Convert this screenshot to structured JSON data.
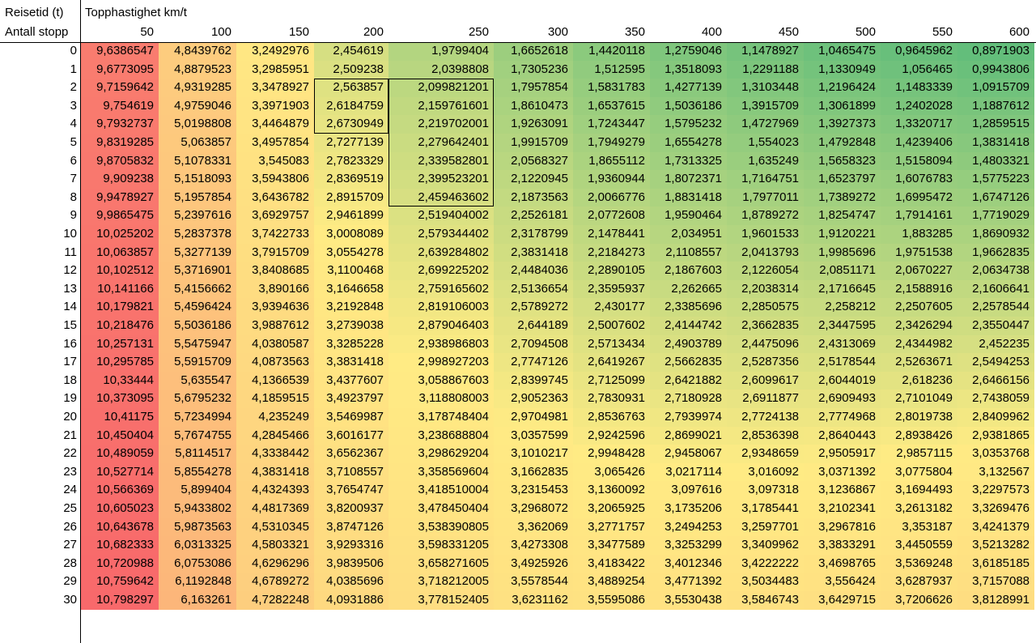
{
  "chart_data": {
    "type": "table",
    "corner_labels": {
      "top": "Reisetid (t)",
      "bottom": "Antall stopp"
    },
    "column_group_label": "Topphastighet km/t",
    "columns": [
      "50",
      "100",
      "150",
      "200",
      "250",
      "300",
      "350",
      "400",
      "450",
      "500",
      "550",
      "600"
    ],
    "rows": [
      {
        "label": "0",
        "values": [
          "9,6386547",
          "4,8439762",
          "3,2492976",
          "2,454619",
          "1,9799404",
          "1,6652618",
          "1,4420118",
          "1,2759046",
          "1,1478927",
          "1,0465475",
          "0,9645962",
          "0,8971903"
        ]
      },
      {
        "label": "1",
        "values": [
          "9,6773095",
          "4,8879523",
          "3,2985951",
          "2,509238",
          "2,0398808",
          "1,7305236",
          "1,512595",
          "1,3518093",
          "1,2291188",
          "1,1330949",
          "1,056465",
          "0,9943806"
        ]
      },
      {
        "label": "2",
        "values": [
          "9,7159642",
          "4,9319285",
          "3,3478927",
          "2,563857",
          "2,099821201",
          "1,7957854",
          "1,5831783",
          "1,4277139",
          "1,3103448",
          "1,2196424",
          "1,1483339",
          "1,0915709"
        ]
      },
      {
        "label": "3",
        "values": [
          "9,754619",
          "4,9759046",
          "3,3971903",
          "2,6184759",
          "2,159761601",
          "1,8610473",
          "1,6537615",
          "1,5036186",
          "1,3915709",
          "1,3061899",
          "1,2402028",
          "1,1887612"
        ]
      },
      {
        "label": "4",
        "values": [
          "9,7932737",
          "5,0198808",
          "3,4464879",
          "2,6730949",
          "2,219702001",
          "1,9263091",
          "1,7243447",
          "1,5795232",
          "1,4727969",
          "1,3927373",
          "1,3320717",
          "1,2859515"
        ]
      },
      {
        "label": "5",
        "values": [
          "9,8319285",
          "5,063857",
          "3,4957854",
          "2,7277139",
          "2,279642401",
          "1,9915709",
          "1,7949279",
          "1,6554278",
          "1,554023",
          "1,4792848",
          "1,4239406",
          "1,3831418"
        ]
      },
      {
        "label": "6",
        "values": [
          "9,8705832",
          "5,1078331",
          "3,545083",
          "2,7823329",
          "2,339582801",
          "2,0568327",
          "1,8655112",
          "1,7313325",
          "1,635249",
          "1,5658323",
          "1,5158094",
          "1,4803321"
        ]
      },
      {
        "label": "7",
        "values": [
          "9,909238",
          "5,1518093",
          "3,5943806",
          "2,8369519",
          "2,399523201",
          "2,1220945",
          "1,9360944",
          "1,8072371",
          "1,7164751",
          "1,6523797",
          "1,6076783",
          "1,5775223"
        ]
      },
      {
        "label": "8",
        "values": [
          "9,9478927",
          "5,1957854",
          "3,6436782",
          "2,8915709",
          "2,459463602",
          "2,1873563",
          "2,0066776",
          "1,8831418",
          "1,7977011",
          "1,7389272",
          "1,6995472",
          "1,6747126"
        ]
      },
      {
        "label": "9",
        "values": [
          "9,9865475",
          "5,2397616",
          "3,6929757",
          "2,9461899",
          "2,519404002",
          "2,2526181",
          "2,0772608",
          "1,9590464",
          "1,8789272",
          "1,8254747",
          "1,7914161",
          "1,7719029"
        ]
      },
      {
        "label": "10",
        "values": [
          "10,025202",
          "5,2837378",
          "3,7422733",
          "3,0008089",
          "2,579344402",
          "2,3178799",
          "2,1478441",
          "2,034951",
          "1,9601533",
          "1,9120221",
          "1,883285",
          "1,8690932"
        ]
      },
      {
        "label": "11",
        "values": [
          "10,063857",
          "5,3277139",
          "3,7915709",
          "3,0554278",
          "2,639284802",
          "2,3831418",
          "2,2184273",
          "2,1108557",
          "2,0413793",
          "1,9985696",
          "1,9751538",
          "1,9662835"
        ]
      },
      {
        "label": "12",
        "values": [
          "10,102512",
          "5,3716901",
          "3,8408685",
          "3,1100468",
          "2,699225202",
          "2,4484036",
          "2,2890105",
          "2,1867603",
          "2,1226054",
          "2,0851171",
          "2,0670227",
          "2,0634738"
        ]
      },
      {
        "label": "13",
        "values": [
          "10,141166",
          "5,4156662",
          "3,890166",
          "3,1646658",
          "2,759165602",
          "2,5136654",
          "2,3595937",
          "2,262665",
          "2,2038314",
          "2,1716645",
          "2,1588916",
          "2,1606641"
        ]
      },
      {
        "label": "14",
        "values": [
          "10,179821",
          "5,4596424",
          "3,9394636",
          "3,2192848",
          "2,819106003",
          "2,5789272",
          "2,430177",
          "2,3385696",
          "2,2850575",
          "2,258212",
          "2,2507605",
          "2,2578544"
        ]
      },
      {
        "label": "15",
        "values": [
          "10,218476",
          "5,5036186",
          "3,9887612",
          "3,2739038",
          "2,879046403",
          "2,644189",
          "2,5007602",
          "2,4144742",
          "2,3662835",
          "2,3447595",
          "2,3426294",
          "2,3550447"
        ]
      },
      {
        "label": "16",
        "values": [
          "10,257131",
          "5,5475947",
          "4,0380587",
          "3,3285228",
          "2,938986803",
          "2,7094508",
          "2,5713434",
          "2,4903789",
          "2,4475096",
          "2,4313069",
          "2,4344982",
          "2,452235"
        ]
      },
      {
        "label": "17",
        "values": [
          "10,295785",
          "5,5915709",
          "4,0873563",
          "3,3831418",
          "2,998927203",
          "2,7747126",
          "2,6419267",
          "2,5662835",
          "2,5287356",
          "2,5178544",
          "2,5263671",
          "2,5494253"
        ]
      },
      {
        "label": "18",
        "values": [
          "10,33444",
          "5,635547",
          "4,1366539",
          "3,4377607",
          "3,058867603",
          "2,8399745",
          "2,7125099",
          "2,6421882",
          "2,6099617",
          "2,6044019",
          "2,618236",
          "2,6466156"
        ]
      },
      {
        "label": "19",
        "values": [
          "10,373095",
          "5,6795232",
          "4,1859515",
          "3,4923797",
          "3,118808003",
          "2,9052363",
          "2,7830931",
          "2,7180928",
          "2,6911877",
          "2,6909493",
          "2,7101049",
          "2,7438059"
        ]
      },
      {
        "label": "20",
        "values": [
          "10,41175",
          "5,7234994",
          "4,235249",
          "3,5469987",
          "3,178748404",
          "2,9704981",
          "2,8536763",
          "2,7939974",
          "2,7724138",
          "2,7774968",
          "2,8019738",
          "2,8409962"
        ]
      },
      {
        "label": "21",
        "values": [
          "10,450404",
          "5,7674755",
          "4,2845466",
          "3,6016177",
          "3,238688804",
          "3,0357599",
          "2,9242596",
          "2,8699021",
          "2,8536398",
          "2,8640443",
          "2,8938426",
          "2,9381865"
        ]
      },
      {
        "label": "22",
        "values": [
          "10,489059",
          "5,8114517",
          "4,3338442",
          "3,6562367",
          "3,298629204",
          "3,1010217",
          "2,9948428",
          "2,9458067",
          "2,9348659",
          "2,9505917",
          "2,9857115",
          "3,0353768"
        ]
      },
      {
        "label": "23",
        "values": [
          "10,527714",
          "5,8554278",
          "4,3831418",
          "3,7108557",
          "3,358569604",
          "3,1662835",
          "3,065426",
          "3,0217114",
          "3,016092",
          "3,0371392",
          "3,0775804",
          "3,132567"
        ]
      },
      {
        "label": "24",
        "values": [
          "10,566369",
          "5,899404",
          "4,4324393",
          "3,7654747",
          "3,418510004",
          "3,2315453",
          "3,1360092",
          "3,097616",
          "3,097318",
          "3,1236867",
          "3,1694493",
          "3,2297573"
        ]
      },
      {
        "label": "25",
        "values": [
          "10,605023",
          "5,9433802",
          "4,4817369",
          "3,8200937",
          "3,478450404",
          "3,2968072",
          "3,2065925",
          "3,1735206",
          "3,1785441",
          "3,2102341",
          "3,2613182",
          "3,3269476"
        ]
      },
      {
        "label": "26",
        "values": [
          "10,643678",
          "5,9873563",
          "4,5310345",
          "3,8747126",
          "3,538390805",
          "3,362069",
          "3,2771757",
          "3,2494253",
          "3,2597701",
          "3,2967816",
          "3,353187",
          "3,4241379"
        ]
      },
      {
        "label": "27",
        "values": [
          "10,682333",
          "6,0313325",
          "4,5803321",
          "3,9293316",
          "3,598331205",
          "3,4273308",
          "3,3477589",
          "3,3253299",
          "3,3409962",
          "3,3833291",
          "3,4450559",
          "3,5213282"
        ]
      },
      {
        "label": "28",
        "values": [
          "10,720988",
          "6,0753086",
          "4,6296296",
          "3,9839506",
          "3,658271605",
          "3,4925926",
          "3,4183422",
          "3,4012346",
          "3,4222222",
          "3,4698765",
          "3,5369248",
          "3,6185185"
        ]
      },
      {
        "label": "29",
        "values": [
          "10,759642",
          "6,1192848",
          "4,6789272",
          "4,0385696",
          "3,718212005",
          "3,5578544",
          "3,4889254",
          "3,4771392",
          "3,5034483",
          "3,556424",
          "3,6287937",
          "3,7157088"
        ]
      },
      {
        "label": "30",
        "values": [
          "10,798297",
          "6,163261",
          "4,7282248",
          "4,0931886",
          "3,778152405",
          "3,6231162",
          "3,5595086",
          "3,5530438",
          "3,5846743",
          "3,6429715",
          "3,7206626",
          "3,8128991"
        ]
      }
    ],
    "color_scale": {
      "low": "#63be7b",
      "mid": "#ffeb84",
      "high": "#f8696b"
    },
    "highlight_boxes": [
      {
        "rows": [
          2,
          4
        ],
        "cols": [
          3,
          3
        ]
      },
      {
        "rows": [
          2,
          8
        ],
        "cols": [
          4,
          4
        ]
      }
    ]
  }
}
